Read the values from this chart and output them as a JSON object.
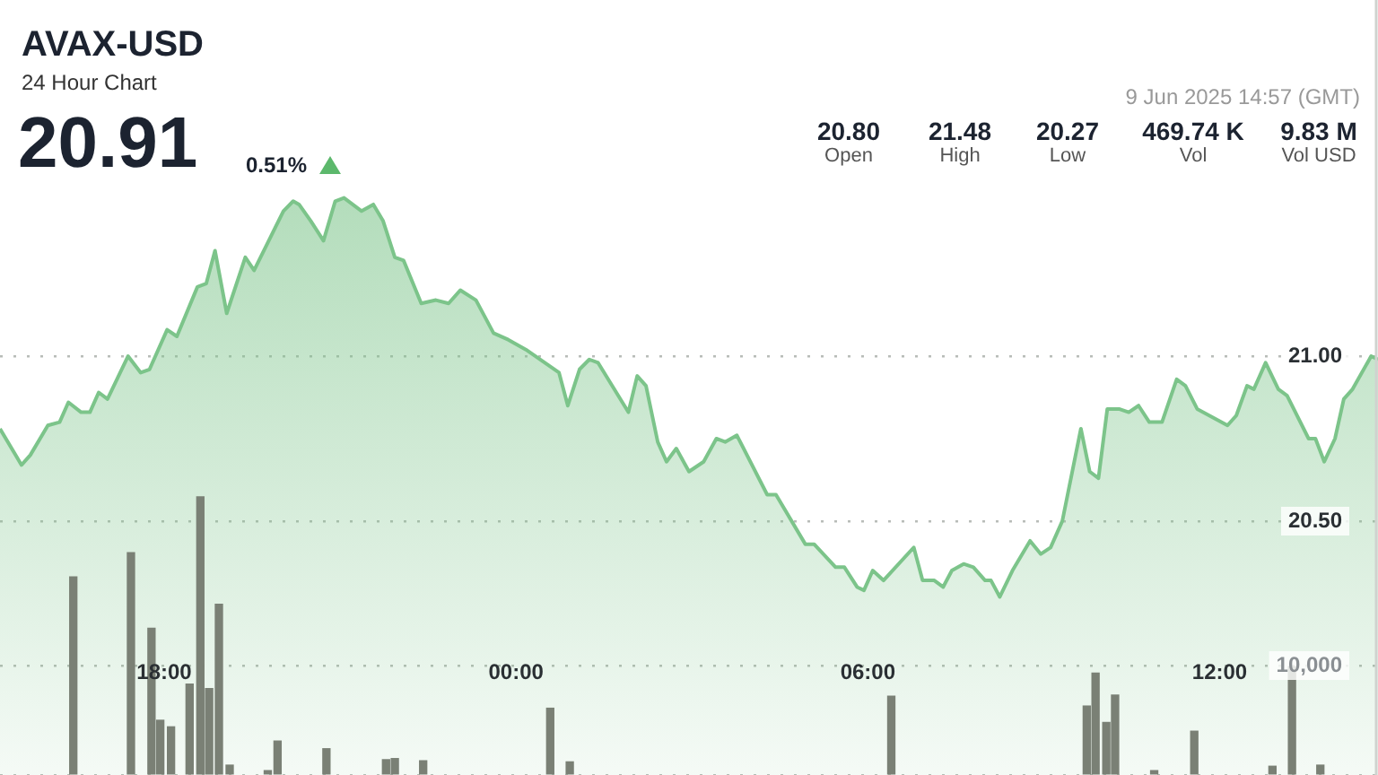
{
  "chart_data": {
    "type": "area",
    "title": "AVAX-USD",
    "subtitle": "24 Hour Chart",
    "annotations": [
      "20.91",
      "0.51%",
      "9 Jun 2025 14:57 (GMT)",
      "20.80",
      "Open",
      "21.48",
      "High",
      "20.27",
      "Low",
      "469.74 K",
      "Vol",
      "9.83 M",
      "Vol USD"
    ],
    "xlim": [
      "2025-06-08T15:12",
      "2025-06-09T14:42"
    ],
    "xticks": [
      {
        "value": "2025-06-08T18:00",
        "label": "18:00"
      },
      {
        "value": "2025-06-09T00:00",
        "label": "00:00"
      },
      {
        "value": "2025-06-09T06:00",
        "label": "06:00"
      },
      {
        "value": "2025-06-09T12:00",
        "label": "12:00"
      }
    ],
    "ylim": [
      19.73,
      22.08
    ],
    "y2lim": [
      0,
      70800
    ],
    "y2ticks": [
      {
        "value": 0,
        "label": null
      },
      {
        "value": 10000,
        "label": "10,000"
      }
    ],
    "yticks": [
      {
        "value": 20.5,
        "label": "20.50"
      },
      {
        "value": 21,
        "label": "21.00"
      }
    ],
    "grid": "y",
    "legend": false,
    "marker": "none",
    "line_style": "solid",
    "series": [
      {
        "color": "#7cc48a",
        "x": [
          "2025-06-08T15:12",
          "2025-06-08T15:34",
          "2025-06-08T15:43",
          "2025-06-08T16:01",
          "2025-06-08T16:13",
          "2025-06-08T16:22",
          "2025-06-08T16:35",
          "2025-06-08T16:44",
          "2025-06-08T16:53",
          "2025-06-08T17:02",
          "2025-06-08T17:23",
          "2025-06-08T17:36",
          "2025-06-08T17:45",
          "2025-06-08T18:03",
          "2025-06-08T18:13",
          "2025-06-08T18:34",
          "2025-06-08T18:43",
          "2025-06-08T18:52",
          "2025-06-08T19:04",
          "2025-06-08T19:23",
          "2025-06-08T19:32",
          "2025-06-08T19:47",
          "2025-06-08T20:02",
          "2025-06-08T20:12",
          "2025-06-08T20:18",
          "2025-06-08T20:30",
          "2025-06-08T20:43",
          "2025-06-08T20:55",
          "2025-06-08T21:04",
          "2025-06-08T21:22",
          "2025-06-08T21:34",
          "2025-06-08T21:44",
          "2025-06-08T21:56",
          "2025-06-08T22:05",
          "2025-06-08T22:23",
          "2025-06-08T22:38",
          "2025-06-08T22:51",
          "2025-06-08T23:03",
          "2025-06-08T23:19",
          "2025-06-08T23:37",
          "2025-06-08T23:52",
          "2025-06-09T00:10",
          "2025-06-09T00:44",
          "2025-06-09T00:53",
          "2025-06-09T01:05",
          "2025-06-09T01:15",
          "2025-06-09T01:24",
          "2025-06-09T01:55",
          "2025-06-09T02:04",
          "2025-06-09T02:13",
          "2025-06-09T02:25",
          "2025-06-09T02:34",
          "2025-06-09T02:44",
          "2025-06-09T02:57",
          "2025-06-09T03:12",
          "2025-06-09T03:25",
          "2025-06-09T03:34",
          "2025-06-09T03:46",
          "2025-06-09T04:17",
          "2025-06-09T04:26",
          "2025-06-09T04:56",
          "2025-06-09T05:05",
          "2025-06-09T05:27",
          "2025-06-09T05:36",
          "2025-06-09T05:49",
          "2025-06-09T05:56",
          "2025-06-09T06:05",
          "2025-06-09T06:16",
          "2025-06-09T06:47",
          "2025-06-09T06:56",
          "2025-06-09T07:08",
          "2025-06-09T07:17",
          "2025-06-09T07:26",
          "2025-06-09T07:38",
          "2025-06-09T07:48",
          "2025-06-09T08:00",
          "2025-06-09T08:06",
          "2025-06-09T08:15",
          "2025-06-09T08:28",
          "2025-06-09T08:46",
          "2025-06-09T08:57",
          "2025-06-09T09:07",
          "2025-06-09T09:19",
          "2025-06-09T09:38",
          "2025-06-09T09:47",
          "2025-06-09T09:56",
          "2025-06-09T10:05",
          "2025-06-09T10:17",
          "2025-06-09T10:27",
          "2025-06-09T10:37",
          "2025-06-09T10:48",
          "2025-06-09T11:01",
          "2025-06-09T11:16",
          "2025-06-09T11:25",
          "2025-06-09T11:37",
          "2025-06-09T12:08",
          "2025-06-09T12:17",
          "2025-06-09T12:28",
          "2025-06-09T12:35",
          "2025-06-09T12:47",
          "2025-06-09T13:00",
          "2025-06-09T13:09",
          "2025-06-09T13:31",
          "2025-06-09T13:38",
          "2025-06-09T13:47",
          "2025-06-09T13:58",
          "2025-06-09T14:07",
          "2025-06-09T14:16",
          "2025-06-09T14:35",
          "2025-06-09T14:42"
        ],
        "values": [
          20.78,
          20.67,
          20.7,
          20.79,
          20.8,
          20.86,
          20.83,
          20.83,
          20.89,
          20.87,
          21.0,
          20.95,
          20.96,
          21.08,
          21.06,
          21.21,
          21.22,
          21.32,
          21.13,
          21.3,
          21.26,
          21.35,
          21.44,
          21.47,
          21.46,
          21.41,
          21.35,
          21.47,
          21.48,
          21.44,
          21.46,
          21.41,
          21.3,
          21.29,
          21.16,
          21.17,
          21.16,
          21.2,
          21.17,
          21.07,
          21.05,
          21.02,
          20.95,
          20.85,
          20.96,
          20.99,
          20.98,
          20.83,
          20.94,
          20.91,
          20.74,
          20.68,
          20.72,
          20.65,
          20.68,
          20.75,
          20.74,
          20.76,
          20.58,
          20.58,
          20.43,
          20.43,
          20.36,
          20.36,
          20.3,
          20.29,
          20.35,
          20.32,
          20.42,
          20.32,
          20.32,
          20.3,
          20.35,
          20.37,
          20.36,
          20.32,
          20.32,
          20.27,
          20.35,
          20.44,
          20.4,
          20.42,
          20.5,
          20.78,
          20.65,
          20.63,
          20.84,
          20.84,
          20.83,
          20.85,
          20.8,
          20.8,
          20.93,
          20.91,
          20.84,
          20.79,
          20.82,
          20.91,
          20.9,
          20.98,
          20.9,
          20.88,
          20.75,
          20.75,
          20.68,
          20.75,
          20.87,
          20.9,
          21.0,
          20.99
        ]
      },
      {
        "type": "bar",
        "axis": "y2",
        "color": "#7a8075",
        "x": [
          "2025-06-08T16:27",
          "2025-06-08T17:26",
          "2025-06-08T17:47",
          "2025-06-08T17:56",
          "2025-06-08T18:07",
          "2025-06-08T18:26",
          "2025-06-08T18:37",
          "2025-06-08T18:46",
          "2025-06-08T18:56",
          "2025-06-08T19:07",
          "2025-06-08T19:46",
          "2025-06-08T19:56",
          "2025-06-08T20:46",
          "2025-06-08T21:47",
          "2025-06-08T21:56",
          "2025-06-08T22:25",
          "2025-06-09T00:35",
          "2025-06-09T00:55",
          "2025-06-09T06:24",
          "2025-06-09T09:44",
          "2025-06-09T09:53",
          "2025-06-09T10:04",
          "2025-06-09T10:13",
          "2025-06-09T10:53",
          "2025-06-09T11:34",
          "2025-06-09T12:54",
          "2025-06-09T13:14",
          "2025-06-09T13:43"
        ],
        "values": [
          18100,
          20300,
          13400,
          5000,
          4400,
          8300,
          25400,
          7900,
          15600,
          900,
          400,
          3100,
          2400,
          1400,
          1500,
          1300,
          6100,
          1200,
          7200,
          6300,
          9300,
          4800,
          7300,
          400,
          4000,
          800,
          9900,
          900
        ]
      }
    ]
  }
}
